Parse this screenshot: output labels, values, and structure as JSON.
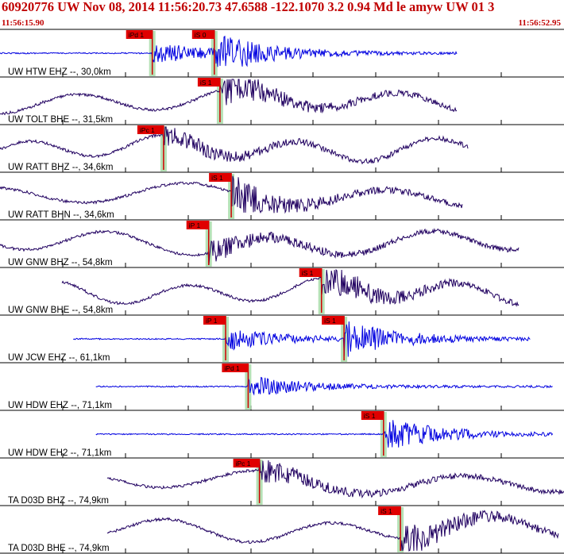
{
  "header": {
    "title": "60920776 UW Nov 08, 2014 11:56:20.73    47.6588 -122.1070  3.2 0.94 Md le amyw UW 01    3",
    "time_start": "11:56:15.90",
    "time_end": "11:56:52.95"
  },
  "colors": {
    "header_text": "#c00000",
    "pick_box": "#e00000",
    "pick_line": "#d00000",
    "pick_band": "#a8dca8",
    "trace_blue": "#0000e0",
    "trace_purple": "#200060",
    "divider": "#000000"
  },
  "chart_data": {
    "type": "line",
    "title": "60920776 UW Nov 08, 2014 11:56:20.73    47.6588 -122.1070  3.2 0.94 Md le amyw UW 01    3",
    "x_range": [
      "11:56:15.90",
      "11:56:52.95"
    ],
    "series": [
      {
        "name": "UW HTW EHZ --, 30,0km",
        "color": "blue",
        "start": 0.0,
        "end": 0.81,
        "picks": [
          {
            "label": "iPd 1",
            "t": 0.27
          },
          {
            "label": "iS 0",
            "t": 0.38
          }
        ]
      },
      {
        "name": "UW TOLT BHE --, 31,5km",
        "color": "purple",
        "start": 0.0,
        "end": 0.81,
        "picks": [
          {
            "label": "iS 1",
            "t": 0.39
          }
        ]
      },
      {
        "name": "UW RATT BHZ --, 34,6km",
        "color": "purple",
        "start": 0.0,
        "end": 0.83,
        "picks": [
          {
            "label": "iPc 1",
            "t": 0.29
          }
        ]
      },
      {
        "name": "UW RATT BHN --, 34,6km",
        "color": "purple",
        "start": 0.0,
        "end": 0.82,
        "picks": [
          {
            "label": "iS 1",
            "t": 0.41
          }
        ]
      },
      {
        "name": "UW GNW BHZ --, 54,8km",
        "color": "purple",
        "start": 0.0,
        "end": 0.92,
        "picks": [
          {
            "label": "iP 1",
            "t": 0.37
          }
        ]
      },
      {
        "name": "UW GNW BHE --, 54,8km",
        "color": "purple",
        "start": 0.11,
        "end": 0.92,
        "picks": [
          {
            "label": "iS 1",
            "t": 0.57
          }
        ]
      },
      {
        "name": "UW JCW EHZ --, 61,1km",
        "color": "blue",
        "start": 0.13,
        "end": 0.94,
        "picks": [
          {
            "label": "iP 1",
            "t": 0.4
          },
          {
            "label": "iS 1",
            "t": 0.61
          }
        ]
      },
      {
        "name": "UW HDW EHZ --, 71,1km",
        "color": "blue",
        "start": 0.17,
        "end": 0.98,
        "picks": [
          {
            "label": "iPd 1",
            "t": 0.44
          }
        ]
      },
      {
        "name": "UW HDW EH2 --, 71,1km",
        "color": "blue",
        "start": 0.17,
        "end": 0.98,
        "picks": [
          {
            "label": "iS 1",
            "t": 0.68
          }
        ]
      },
      {
        "name": "TA D03D BHZ --, 74,9km",
        "color": "purple",
        "start": 0.19,
        "end": 1.0,
        "picks": [
          {
            "label": "iPc 1",
            "t": 0.46
          }
        ]
      },
      {
        "name": "TA D03D BHE --, 74,9km",
        "color": "purple",
        "start": 0.19,
        "end": 0.99,
        "picks": [
          {
            "label": "iS 1",
            "t": 0.71
          }
        ]
      }
    ]
  }
}
